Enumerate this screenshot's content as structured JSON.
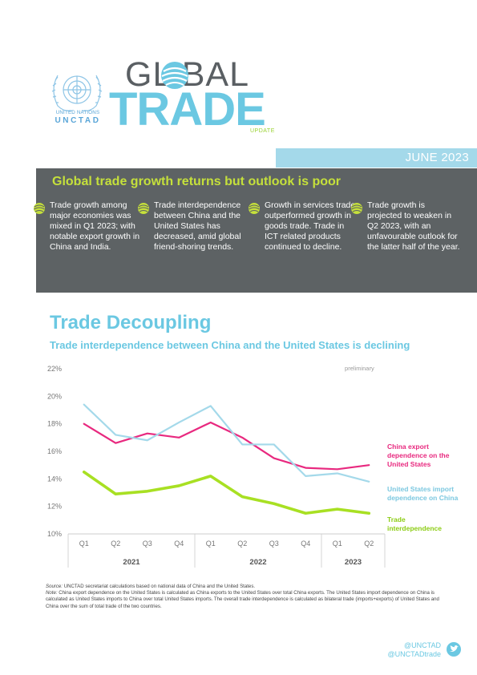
{
  "header": {
    "un_name": "UNITED NATIONS",
    "un_unctad": "UNCTAD",
    "global_word": "GL  BAL",
    "trade_word": "TRADE",
    "update_word": "UPDATE",
    "date": "JUNE 2023"
  },
  "highlights": {
    "title": "Global trade growth returns but outlook is poor",
    "items": [
      {
        "text": "Trade growth among major economies was mixed in Q1 2023; with notable export growth in China and India."
      },
      {
        "text": "Trade interdependence between China and the United States has decreased, amid global friend-shoring trends."
      },
      {
        "text": "Growth in services trade outperformed growth in goods trade. Trade in ICT related products continued to decline."
      },
      {
        "text": "Trade growth is projected to weaken in Q2 2023, with an unfavourable outlook for the latter half of the year."
      }
    ]
  },
  "section": {
    "title": "Trade Decoupling",
    "subtitle": "Trade interdependence between China and the United States is declining"
  },
  "chart_data": {
    "type": "line",
    "annotation": "preliminary",
    "quarters": [
      "Q1",
      "Q2",
      "Q3",
      "Q4",
      "Q1",
      "Q2",
      "Q3",
      "Q4",
      "Q1",
      "Q2"
    ],
    "years": [
      {
        "label": "2021",
        "span": 4
      },
      {
        "label": "2022",
        "span": 4
      },
      {
        "label": "2023",
        "span": 2
      }
    ],
    "y_ticks": [
      "22%",
      "20%",
      "18%",
      "16%",
      "14%",
      "12%",
      "10%"
    ],
    "ylim": [
      10,
      22
    ],
    "grid": false,
    "series": [
      {
        "name_lines": [
          "China export",
          "dependence on the",
          "United States"
        ],
        "color": "#e8297f",
        "width": 2.2,
        "values": [
          18.0,
          16.6,
          17.3,
          17.0,
          18.1,
          17.0,
          15.5,
          14.8,
          14.7,
          15.0
        ]
      },
      {
        "name_lines": [
          "United States import",
          "dependence on China"
        ],
        "color": "#a4d9ea",
        "width": 2.2,
        "values": [
          19.4,
          17.2,
          16.8,
          18.1,
          19.3,
          16.5,
          16.5,
          14.2,
          14.4,
          13.8
        ]
      },
      {
        "name_lines": [
          "Trade",
          "interdependence"
        ],
        "color": "#a8e023",
        "width": 3.6,
        "values": [
          14.5,
          12.9,
          13.1,
          13.5,
          14.2,
          12.7,
          12.2,
          11.5,
          11.8,
          11.5
        ]
      }
    ]
  },
  "notes": {
    "source_label": "Source:",
    "source_text": " UNCTAD secretariat calculations based on national data of China and the United States.",
    "note_label": "Note:",
    "note_text": " China export dependence on the United States is calculated as China exports to the United States over total China exports. The United States import dependence on China is calculated as United States imports to China over total United States imports. The overall trade interdependence is calculated as bilateral trade (imports+exports) of United States and China over the sum of total trade of the two countries."
  },
  "social": {
    "handle_1": "@UNCTAD",
    "handle_2": "@UNCTADtrade"
  },
  "colors": {
    "brand_blue": "#6bc8e2",
    "brand_green": "#c5e03b",
    "panel_grey": "#5d6264"
  }
}
